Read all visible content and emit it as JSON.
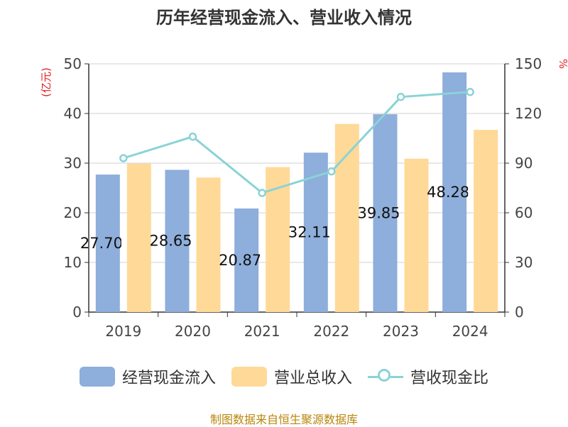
{
  "chart_data": {
    "type": "bar",
    "title": "历年经营现金流入、营业收入情况",
    "categories": [
      "2019",
      "2020",
      "2021",
      "2022",
      "2023",
      "2024"
    ],
    "series": [
      {
        "name": "经营现金流入",
        "type": "bar",
        "axis": "left",
        "color": "#8eaedb",
        "values": [
          27.7,
          28.65,
          20.87,
          32.11,
          39.85,
          48.28
        ],
        "labels": [
          "27.70",
          "28.65",
          "20.87",
          "32.11",
          "39.85",
          "48.28"
        ]
      },
      {
        "name": "营业总收入",
        "type": "bar",
        "axis": "left",
        "color": "#ffd998",
        "values": [
          29.9,
          27.1,
          29.2,
          37.9,
          30.9,
          36.7
        ]
      },
      {
        "name": "营收现金比",
        "type": "line",
        "axis": "right",
        "color": "#8ad3d6",
        "values": [
          93,
          106,
          72,
          85,
          130,
          133
        ]
      }
    ],
    "y_left": {
      "label": "(亿元)",
      "ylim": [
        0,
        50
      ],
      "ticks": [
        "0",
        "10",
        "20",
        "30",
        "40",
        "50"
      ]
    },
    "y_right": {
      "label": "%",
      "ylim": [
        0,
        150
      ],
      "ticks": [
        "0",
        "30",
        "60",
        "90",
        "120",
        "150"
      ]
    },
    "grid": true,
    "legend_position": "bottom"
  },
  "source_text": "制图数据来自恒生聚源数据库"
}
